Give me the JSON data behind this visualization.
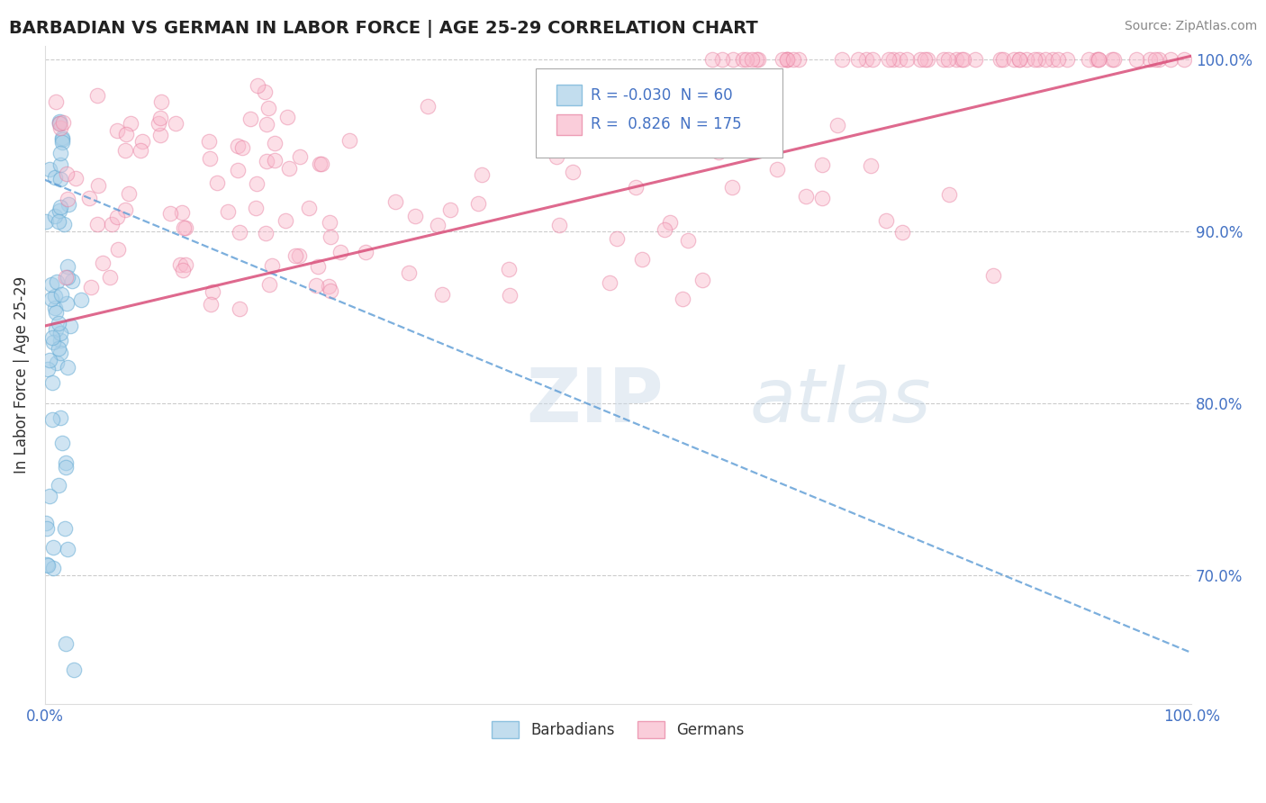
{
  "title": "BARBADIAN VS GERMAN IN LABOR FORCE | AGE 25-29 CORRELATION CHART",
  "source_text": "Source: ZipAtlas.com",
  "ylabel": "In Labor Force | Age 25-29",
  "xlim": [
    0.0,
    1.0
  ],
  "ylim": [
    0.625,
    1.008
  ],
  "yticks": [
    0.7,
    0.8,
    0.9,
    1.0
  ],
  "ytick_labels": [
    "70.0%",
    "80.0%",
    "90.0%",
    "100.0%"
  ],
  "barbadian_color": "#a8cfe8",
  "barbadian_edge": "#6aaed6",
  "german_color": "#f9b8cb",
  "german_edge": "#e87fa0",
  "blue_line_color": "#5b9bd5",
  "pink_line_color": "#d94f7a",
  "blue_line_start_y": 0.93,
  "blue_line_end_y": 0.655,
  "pink_line_start_y": 0.845,
  "pink_line_end_y": 1.002,
  "watermark": "ZIPAtlas",
  "legend_r_blue": "-0.030",
  "legend_n_blue": "60",
  "legend_r_pink": "0.826",
  "legend_n_pink": "175",
  "legend_label_blue": "Barbadians",
  "legend_label_pink": "Germans",
  "title_color": "#222222",
  "source_color": "#888888",
  "tick_color": "#4472c4",
  "ylabel_color": "#333333",
  "grid_color": "#cccccc",
  "legend_text_color": "#4472c4"
}
